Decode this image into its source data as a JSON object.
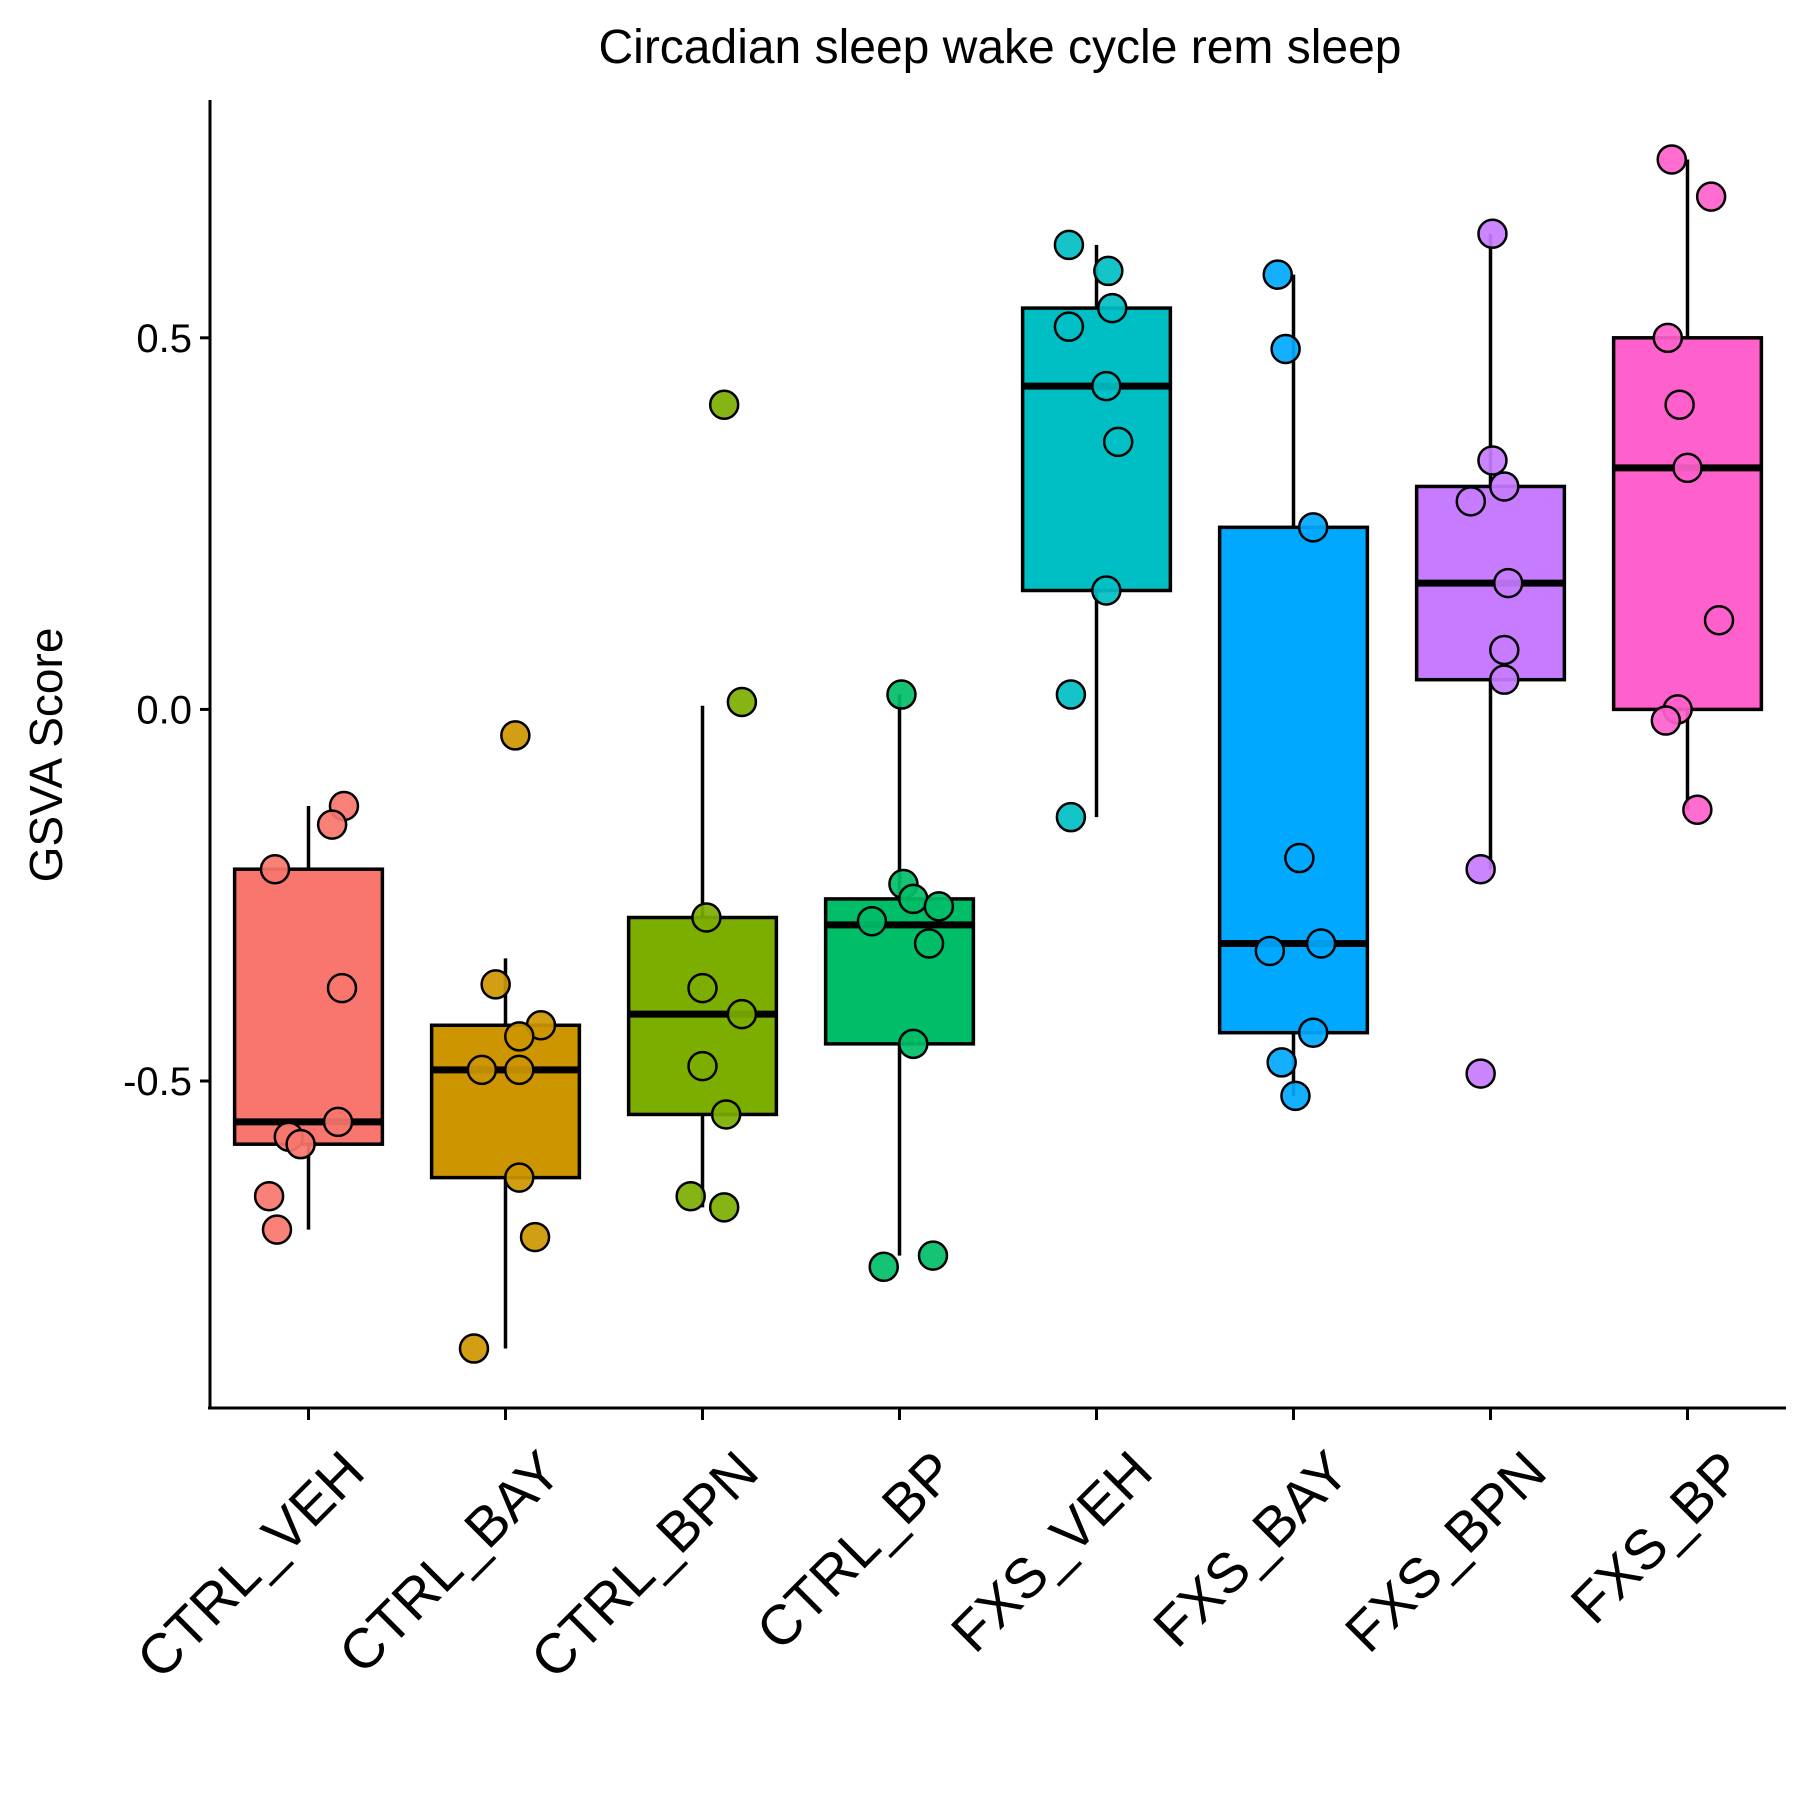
{
  "chart_data": {
    "type": "box",
    "title": "Circadian sleep wake cycle rem sleep",
    "ylabel": "GSVA Score",
    "xlabel": "",
    "ylim": [
      -0.94,
      0.82
    ],
    "yticks": [
      0.5,
      0.0,
      -0.5
    ],
    "ytick_labels": [
      "0.5",
      "0.0",
      "-0.5"
    ],
    "legend": "none",
    "grid": false,
    "groups": [
      {
        "label": "CTRL_VEH",
        "color": "#F8766D",
        "q1": -0.585,
        "median": -0.555,
        "q3": -0.215,
        "whisker_low": -0.7,
        "whisker_high": -0.13,
        "points": [
          -0.13,
          -0.155,
          -0.215,
          -0.375,
          -0.555,
          -0.575,
          -0.585,
          -0.655,
          -0.7
        ],
        "jitter": [
          0.18,
          0.12,
          -0.17,
          0.17,
          0.15,
          -0.1,
          -0.04,
          -0.2,
          -0.16
        ]
      },
      {
        "label": "CTRL_BAY",
        "color": "#CD9600",
        "q1": -0.63,
        "median": -0.485,
        "q3": -0.425,
        "whisker_low": -0.86,
        "whisker_high": -0.335,
        "points": [
          -0.035,
          -0.37,
          -0.425,
          -0.44,
          -0.485,
          -0.485,
          -0.63,
          -0.71,
          -0.86
        ],
        "jitter": [
          0.05,
          -0.05,
          0.18,
          0.07,
          -0.12,
          0.07,
          0.07,
          0.15,
          -0.16
        ]
      },
      {
        "label": "CTRL_BPN",
        "color": "#7CAE00",
        "q1": -0.545,
        "median": -0.41,
        "q3": -0.28,
        "whisker_low": -0.67,
        "whisker_high": 0.005,
        "points": [
          0.41,
          0.01,
          -0.28,
          -0.375,
          -0.41,
          -0.48,
          -0.545,
          -0.655,
          -0.67
        ],
        "jitter": [
          0.11,
          0.2,
          0.02,
          0.0,
          0.2,
          0.0,
          0.12,
          -0.06,
          0.11
        ]
      },
      {
        "label": "CTRL_BP",
        "color": "#00BE67",
        "q1": -0.45,
        "median": -0.29,
        "q3": -0.255,
        "whisker_low": -0.735,
        "whisker_high": 0.02,
        "points": [
          0.02,
          -0.235,
          -0.255,
          -0.265,
          -0.285,
          -0.315,
          -0.45,
          -0.735,
          -0.75
        ],
        "jitter": [
          0.01,
          0.02,
          0.07,
          0.2,
          -0.14,
          0.15,
          0.07,
          0.17,
          -0.08
        ]
      },
      {
        "label": "FXS_VEH",
        "color": "#00BFC4",
        "q1": 0.16,
        "median": 0.435,
        "q3": 0.54,
        "whisker_low": -0.145,
        "whisker_high": 0.625,
        "points": [
          0.625,
          0.59,
          0.54,
          0.515,
          0.435,
          0.36,
          0.16,
          0.02,
          -0.145
        ],
        "jitter": [
          -0.14,
          0.06,
          0.08,
          -0.14,
          0.05,
          0.11,
          0.05,
          -0.13,
          -0.13
        ]
      },
      {
        "label": "FXS_BAY",
        "color": "#00A9FF",
        "q1": -0.435,
        "median": -0.315,
        "q3": 0.245,
        "whisker_low": -0.52,
        "whisker_high": 0.585,
        "points": [
          0.585,
          0.485,
          0.245,
          -0.2,
          -0.315,
          -0.325,
          -0.435,
          -0.475,
          -0.52
        ],
        "jitter": [
          -0.08,
          -0.04,
          0.1,
          0.03,
          0.14,
          -0.12,
          0.1,
          -0.06,
          0.01
        ]
      },
      {
        "label": "FXS_BPN",
        "color": "#C77CFF",
        "q1": 0.04,
        "median": 0.17,
        "q3": 0.3,
        "whisker_low": -0.215,
        "whisker_high": 0.64,
        "points": [
          0.64,
          0.335,
          0.3,
          0.28,
          0.17,
          0.08,
          0.04,
          -0.215,
          -0.49
        ],
        "jitter": [
          0.01,
          0.01,
          0.07,
          -0.1,
          0.09,
          0.07,
          0.07,
          -0.05,
          -0.05
        ]
      },
      {
        "label": "FXS_BP",
        "color": "#FF61CC",
        "q1": 0.0,
        "median": 0.325,
        "q3": 0.5,
        "whisker_low": -0.135,
        "whisker_high": 0.74,
        "points": [
          0.74,
          0.69,
          0.5,
          0.41,
          0.325,
          0.12,
          0.0,
          -0.015,
          -0.135
        ],
        "jitter": [
          -0.08,
          0.12,
          -0.1,
          -0.04,
          0.0,
          0.16,
          -0.05,
          -0.11,
          0.05
        ]
      }
    ]
  }
}
